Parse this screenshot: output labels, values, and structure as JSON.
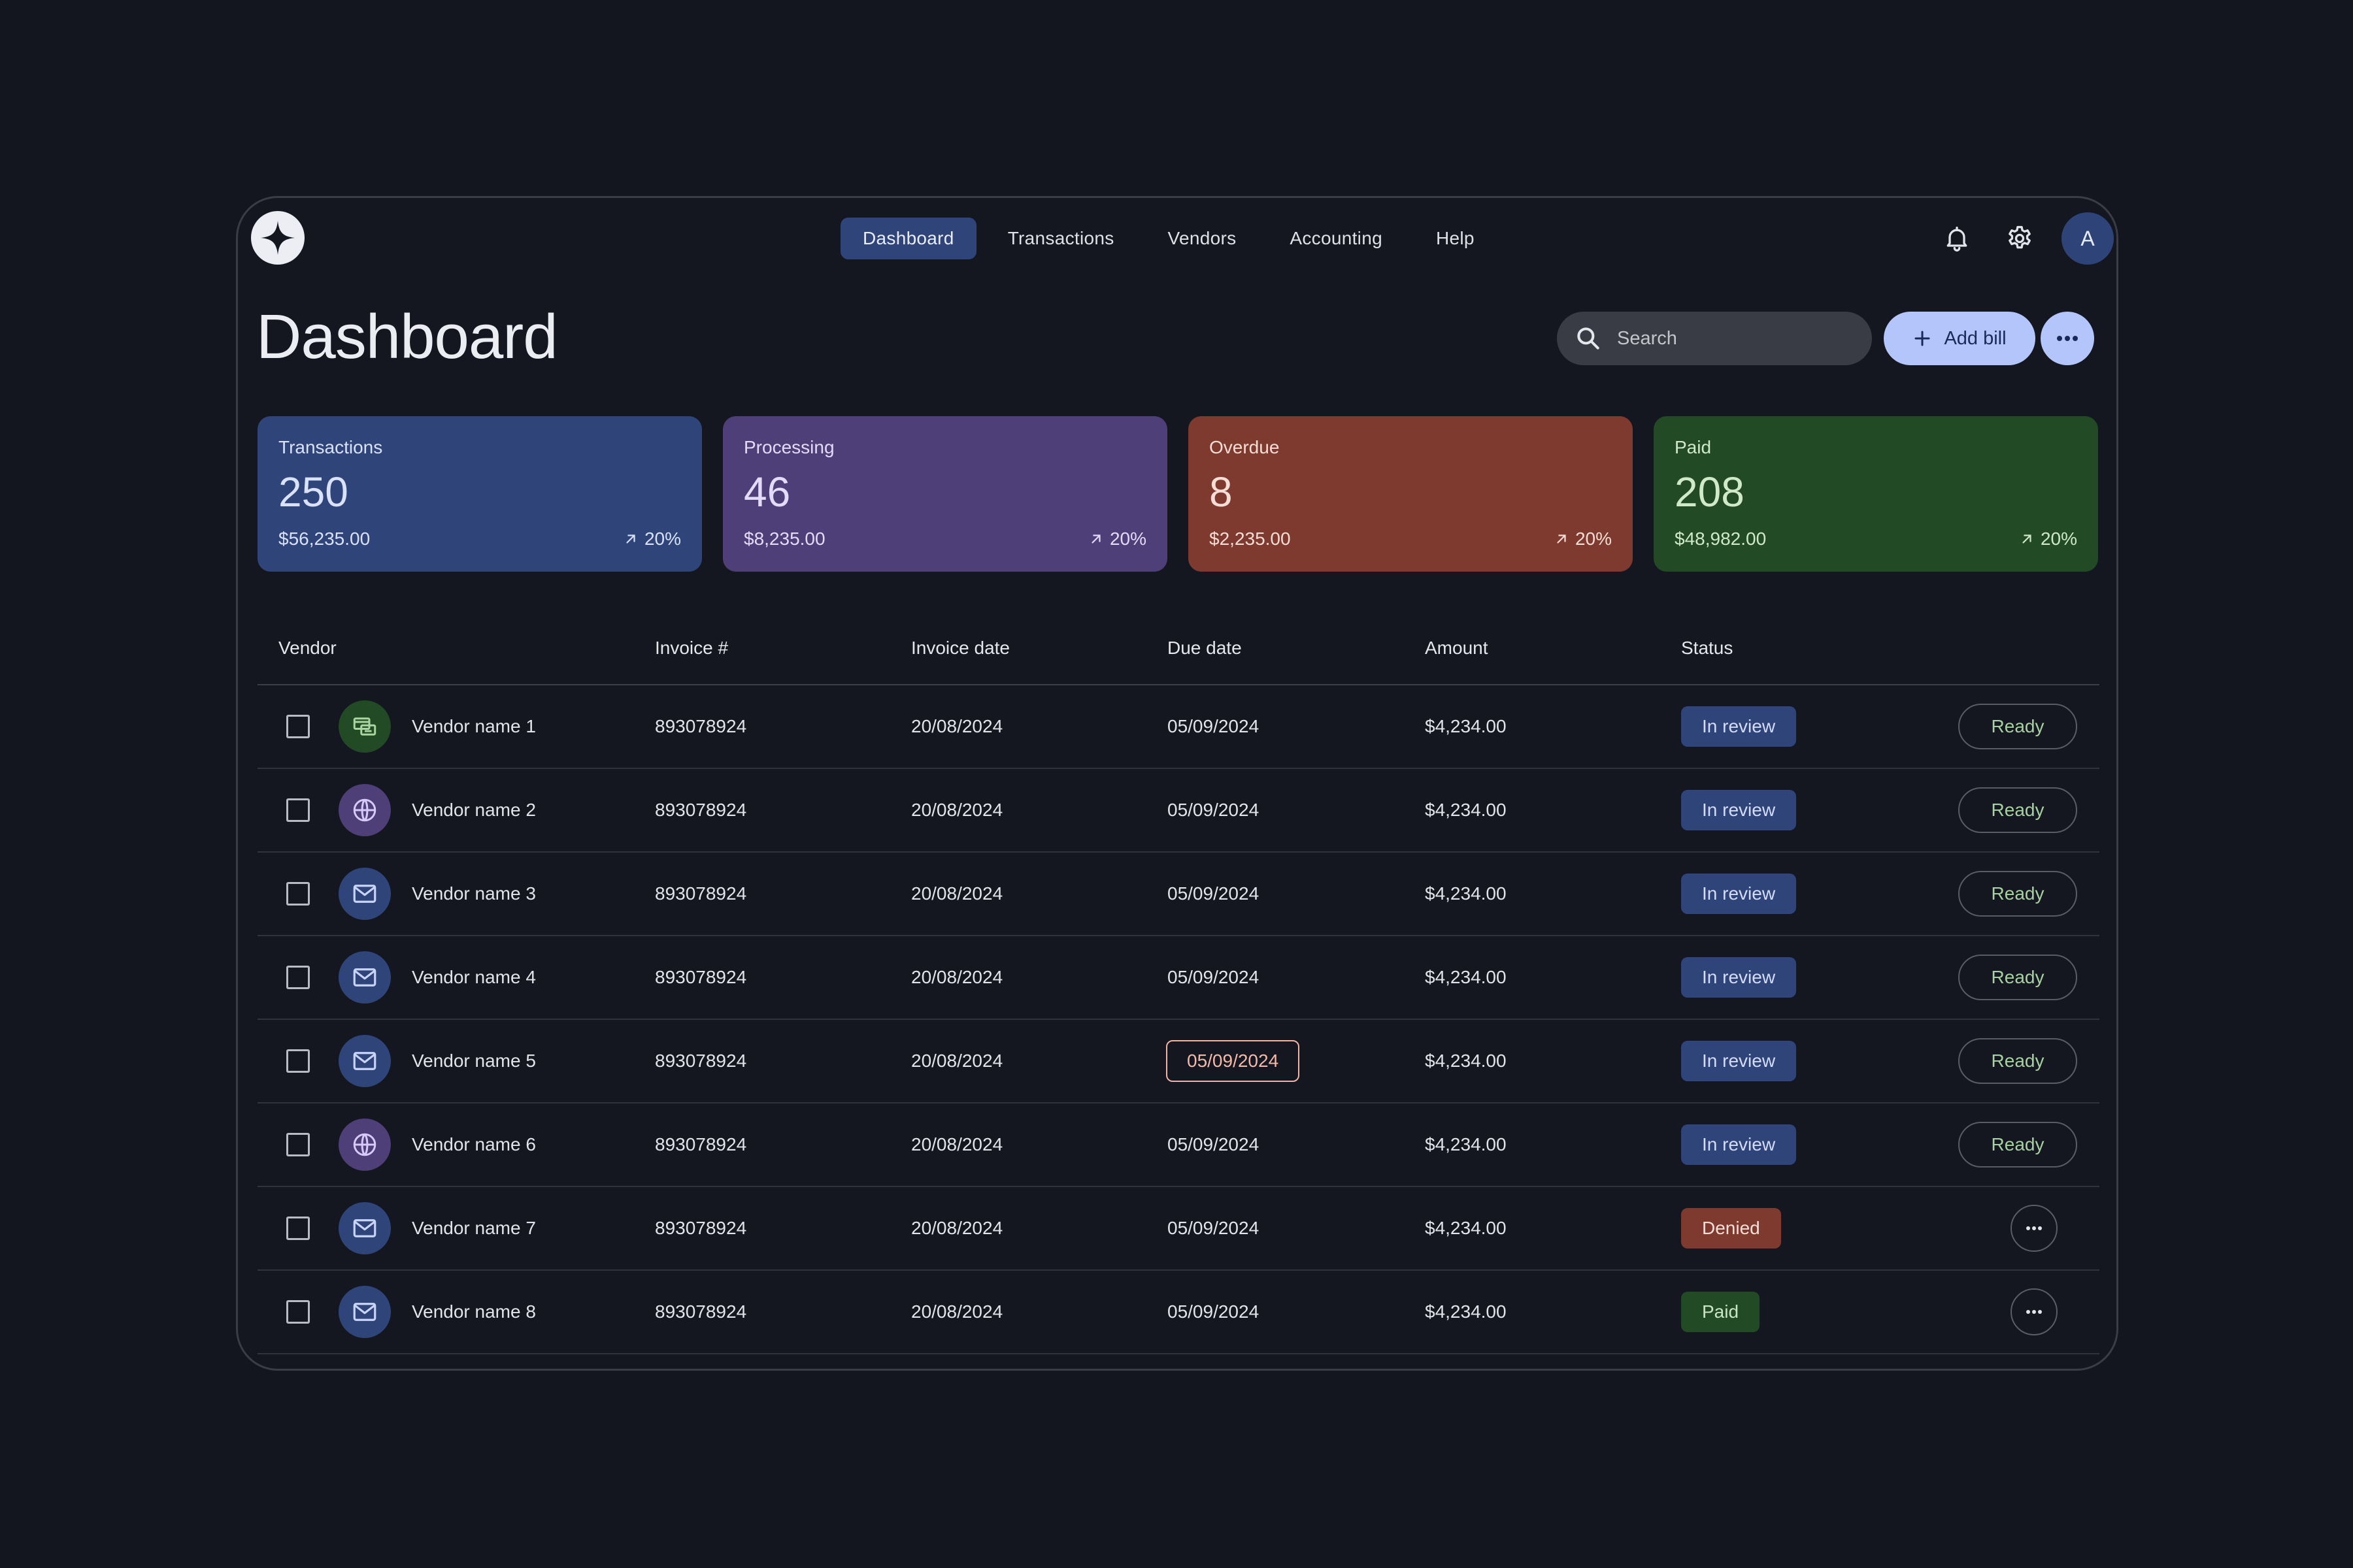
{
  "nav": {
    "tabs": [
      {
        "label": "Dashboard",
        "active": true
      },
      {
        "label": "Transactions"
      },
      {
        "label": "Vendors"
      },
      {
        "label": "Accounting"
      },
      {
        "label": "Help"
      }
    ]
  },
  "user": {
    "avatar_initial": "A"
  },
  "header": {
    "title": "Dashboard",
    "search_placeholder": "Search",
    "add_bill_label": "Add bill"
  },
  "stats": [
    {
      "label": "Transactions",
      "value": "250",
      "amount": "$56,235.00",
      "trend": "20%",
      "color": "#2f4479"
    },
    {
      "label": "Processing",
      "value": "46",
      "amount": "$8,235.00",
      "trend": "20%",
      "color": "#4e3f78"
    },
    {
      "label": "Overdue",
      "value": "8",
      "amount": "$2,235.00",
      "trend": "20%",
      "color": "#7e3a2f"
    },
    {
      "label": "Paid",
      "value": "208",
      "amount": "$48,982.00",
      "trend": "20%",
      "color": "#224a25"
    }
  ],
  "table": {
    "headers": {
      "vendor": "Vendor",
      "invoice": "Invoice #",
      "invoice_date": "Invoice date",
      "due_date": "Due date",
      "amount": "Amount",
      "status": "Status"
    },
    "action_label": "Ready",
    "rows": [
      {
        "vendor": "Vendor name 1",
        "icon": "shop-icon",
        "invoice": "893078924",
        "invoice_date": "20/08/2024",
        "due_date": "05/09/2024",
        "amount": "$4,234.00",
        "status": "In review"
      },
      {
        "vendor": "Vendor name 2",
        "icon": "globe-icon",
        "invoice": "893078924",
        "invoice_date": "20/08/2024",
        "due_date": "05/09/2024",
        "amount": "$4,234.00",
        "status": "In review"
      },
      {
        "vendor": "Vendor name 3",
        "icon": "mail-icon",
        "invoice": "893078924",
        "invoice_date": "20/08/2024",
        "due_date": "05/09/2024",
        "amount": "$4,234.00",
        "status": "In review"
      },
      {
        "vendor": "Vendor name 4",
        "icon": "mail-icon",
        "invoice": "893078924",
        "invoice_date": "20/08/2024",
        "due_date": "05/09/2024",
        "amount": "$4,234.00",
        "status": "In review"
      },
      {
        "vendor": "Vendor name 5",
        "icon": "mail-icon",
        "invoice": "893078924",
        "invoice_date": "20/08/2024",
        "due_date": "05/09/2024",
        "amount": "$4,234.00",
        "status": "In review",
        "due_flagged": true
      },
      {
        "vendor": "Vendor name 6",
        "icon": "globe-icon",
        "invoice": "893078924",
        "invoice_date": "20/08/2024",
        "due_date": "05/09/2024",
        "amount": "$4,234.00",
        "status": "In review"
      },
      {
        "vendor": "Vendor name 7",
        "icon": "mail-icon",
        "invoice": "893078924",
        "invoice_date": "20/08/2024",
        "due_date": "05/09/2024",
        "amount": "$4,234.00",
        "status": "Denied"
      },
      {
        "vendor": "Vendor name 8",
        "icon": "mail-icon",
        "invoice": "893078924",
        "invoice_date": "20/08/2024",
        "due_date": "05/09/2024",
        "amount": "$4,234.00",
        "status": "Paid"
      }
    ]
  }
}
